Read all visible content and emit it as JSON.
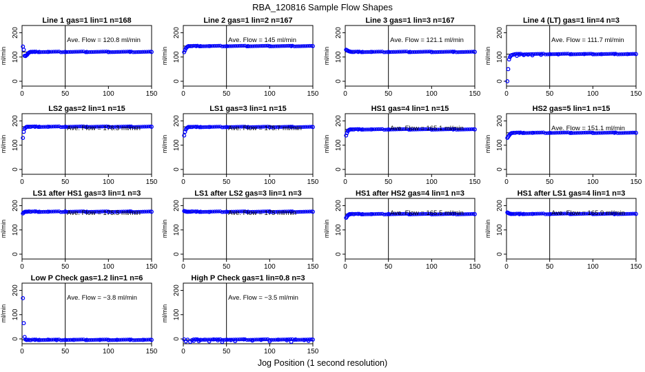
{
  "figure": {
    "title": "RBA_120816  Sample Flow Shapes",
    "xlabel": "Jog Position (1 second resolution)"
  },
  "chart_data": [
    {
      "type": "scatter",
      "title": "Line 1 gas=1 lin=1 n=168",
      "ylabel": "ml/min",
      "annotation": "Ave. Flow =  120.8  ml/min",
      "mean": 120.8,
      "xlim": [
        0,
        150
      ],
      "ylim": [
        -20,
        230
      ],
      "xticks": [
        0,
        50,
        100,
        150
      ],
      "yticks": [
        0,
        100,
        200
      ],
      "vline_x": 50,
      "color": "#0000ff",
      "series": [
        {
          "x": [
            1,
            2,
            3,
            4,
            5,
            6,
            7,
            8,
            9,
            10,
            12,
            15,
            20,
            30,
            50,
            75,
            100,
            125,
            150
          ],
          "y": [
            143,
            130,
            105,
            104,
            107,
            110,
            115,
            118,
            120,
            121,
            121,
            121,
            121,
            121,
            121,
            121,
            121,
            121,
            121
          ]
        }
      ]
    },
    {
      "type": "scatter",
      "title": "Line 2 gas=1 lin=2 n=167",
      "ylabel": "ml/min",
      "annotation": "Ave. Flow = 145  ml/min",
      "mean": 145,
      "xlim": [
        0,
        150
      ],
      "ylim": [
        -20,
        230
      ],
      "xticks": [
        0,
        50,
        100,
        150
      ],
      "yticks": [
        0,
        100,
        200
      ],
      "vline_x": 50,
      "color": "#0000ff",
      "series": [
        {
          "x": [
            1,
            2,
            3,
            4,
            5,
            6,
            8,
            10,
            15,
            20,
            30,
            50,
            75,
            100,
            125,
            150
          ],
          "y": [
            120,
            128,
            136,
            140,
            143,
            145,
            145,
            145,
            145,
            145,
            145,
            145,
            145,
            145,
            145,
            145
          ]
        }
      ]
    },
    {
      "type": "scatter",
      "title": "Line 3 gas=1 lin=3 n=167",
      "ylabel": "ml/min",
      "annotation": "Ave. Flow =  121.1  ml/min",
      "mean": 121.1,
      "xlim": [
        0,
        150
      ],
      "ylim": [
        -20,
        230
      ],
      "xticks": [
        0,
        50,
        100,
        150
      ],
      "yticks": [
        0,
        100,
        200
      ],
      "vline_x": 50,
      "color": "#0000ff",
      "series": [
        {
          "x": [
            1,
            2,
            3,
            4,
            5,
            6,
            8,
            10,
            15,
            20,
            30,
            50,
            75,
            100,
            125,
            150
          ],
          "y": [
            130,
            128,
            126,
            124,
            123,
            122,
            121,
            121,
            121,
            121,
            121,
            121,
            121,
            121,
            121,
            121
          ]
        }
      ]
    },
    {
      "type": "scatter",
      "title": "Line 4 (LT) gas=1 lin=4 n=3",
      "ylabel": "ml/min",
      "annotation": "Ave. Flow =  111.7  ml/min",
      "mean": 111.7,
      "xlim": [
        0,
        150
      ],
      "ylim": [
        -20,
        230
      ],
      "xticks": [
        0,
        50,
        100,
        150
      ],
      "yticks": [
        0,
        100,
        200
      ],
      "vline_x": 50,
      "color": "#0000ff",
      "series": [
        {
          "x": [
            1,
            2,
            3,
            4,
            5,
            6,
            8,
            10,
            12,
            15,
            20,
            25,
            30,
            40,
            50,
            60,
            75,
            90,
            100,
            110,
            125,
            140,
            150
          ],
          "y": [
            0,
            50,
            90,
            100,
            105,
            108,
            110,
            112,
            105,
            110,
            108,
            110,
            107,
            109,
            112,
            111,
            112,
            112,
            112,
            112,
            112,
            112,
            112
          ]
        }
      ]
    },
    {
      "type": "scatter",
      "title": "LS2 gas=2 lin=1 n=15",
      "ylabel": "ml/min",
      "annotation": "Ave. Flow =  176.3  ml/min",
      "mean": 176.3,
      "xlim": [
        0,
        150
      ],
      "ylim": [
        -20,
        230
      ],
      "xticks": [
        0,
        50,
        100,
        150
      ],
      "yticks": [
        0,
        100,
        200
      ],
      "vline_x": 50,
      "color": "#0000ff",
      "series": [
        {
          "x": [
            1,
            2,
            3,
            4,
            5,
            6,
            8,
            10,
            15,
            20,
            30,
            50,
            75,
            100,
            125,
            150
          ],
          "y": [
            130,
            155,
            168,
            172,
            175,
            176,
            176,
            176,
            176,
            176,
            176,
            176,
            176,
            176,
            176,
            176
          ]
        }
      ]
    },
    {
      "type": "scatter",
      "title": "LS1 gas=3 lin=1 n=15",
      "ylabel": "ml/min",
      "annotation": "Ave. Flow =  175.7  ml/min",
      "mean": 175.7,
      "xlim": [
        0,
        150
      ],
      "ylim": [
        -20,
        230
      ],
      "xticks": [
        0,
        50,
        100,
        150
      ],
      "yticks": [
        0,
        100,
        200
      ],
      "vline_x": 50,
      "color": "#0000ff",
      "series": [
        {
          "x": [
            1,
            2,
            3,
            4,
            5,
            6,
            8,
            10,
            15,
            20,
            30,
            50,
            75,
            100,
            125,
            150
          ],
          "y": [
            140,
            155,
            165,
            170,
            173,
            175,
            175,
            175,
            175,
            175,
            175,
            175,
            175,
            175,
            175,
            175
          ]
        }
      ]
    },
    {
      "type": "scatter",
      "title": "HS1 gas=4 lin=1 n=15",
      "ylabel": "ml/min",
      "annotation": "Ave. Flow =  165.1  ml/min",
      "mean": 165.1,
      "xlim": [
        0,
        150
      ],
      "ylim": [
        -20,
        230
      ],
      "xticks": [
        0,
        50,
        100,
        150
      ],
      "yticks": [
        0,
        100,
        200
      ],
      "vline_x": 50,
      "color": "#0000ff",
      "series": [
        {
          "x": [
            1,
            2,
            3,
            4,
            5,
            6,
            8,
            10,
            15,
            20,
            30,
            50,
            75,
            100,
            125,
            150
          ],
          "y": [
            140,
            150,
            158,
            162,
            164,
            165,
            165,
            165,
            165,
            165,
            165,
            165,
            165,
            165,
            165,
            165
          ]
        }
      ]
    },
    {
      "type": "scatter",
      "title": "HS2 gas=5 lin=1 n=15",
      "ylabel": "ml/min",
      "annotation": "Ave. Flow =  151.1  ml/min",
      "mean": 151.1,
      "xlim": [
        0,
        150
      ],
      "ylim": [
        -20,
        230
      ],
      "xticks": [
        0,
        50,
        100,
        150
      ],
      "yticks": [
        0,
        100,
        200
      ],
      "vline_x": 50,
      "color": "#0000ff",
      "series": [
        {
          "x": [
            1,
            2,
            3,
            4,
            5,
            6,
            8,
            10,
            15,
            20,
            30,
            50,
            75,
            100,
            125,
            150
          ],
          "y": [
            130,
            135,
            140,
            145,
            148,
            150,
            151,
            151,
            151,
            151,
            151,
            151,
            151,
            151,
            151,
            151
          ]
        }
      ]
    },
    {
      "type": "scatter",
      "title": "LS1 after HS1 gas=3 lin=1 n=3",
      "ylabel": "ml/min",
      "annotation": "Ave. Flow =  175.5  ml/min",
      "mean": 175.5,
      "xlim": [
        0,
        150
      ],
      "ylim": [
        -20,
        230
      ],
      "xticks": [
        0,
        50,
        100,
        150
      ],
      "yticks": [
        0,
        100,
        200
      ],
      "vline_x": 50,
      "color": "#0000ff",
      "series": [
        {
          "x": [
            1,
            2,
            3,
            4,
            5,
            6,
            8,
            10,
            15,
            20,
            30,
            50,
            75,
            100,
            125,
            150
          ],
          "y": [
            168,
            172,
            174,
            175,
            175,
            175,
            176,
            175,
            176,
            175,
            175,
            176,
            175,
            175,
            176,
            175
          ]
        }
      ]
    },
    {
      "type": "scatter",
      "title": "LS1 after LS2 gas=3 lin=1 n=3",
      "ylabel": "ml/min",
      "annotation": "Ave. Flow =  175  ml/min",
      "mean": 175,
      "xlim": [
        0,
        150
      ],
      "ylim": [
        -20,
        230
      ],
      "xticks": [
        0,
        50,
        100,
        150
      ],
      "yticks": [
        0,
        100,
        200
      ],
      "vline_x": 50,
      "color": "#0000ff",
      "series": [
        {
          "x": [
            1,
            2,
            3,
            4,
            5,
            6,
            8,
            10,
            15,
            20,
            30,
            50,
            75,
            100,
            125,
            150
          ],
          "y": [
            178,
            177,
            176,
            175,
            175,
            175,
            175,
            176,
            175,
            175,
            174,
            175,
            175,
            176,
            175,
            175
          ]
        }
      ]
    },
    {
      "type": "scatter",
      "title": "HS1 after HS2 gas=4 lin=1 n=3",
      "ylabel": "ml/min",
      "annotation": "Ave. Flow =  165.5  ml/min",
      "mean": 165.5,
      "xlim": [
        0,
        150
      ],
      "ylim": [
        -20,
        230
      ],
      "xticks": [
        0,
        50,
        100,
        150
      ],
      "yticks": [
        0,
        100,
        200
      ],
      "vline_x": 50,
      "color": "#0000ff",
      "series": [
        {
          "x": [
            1,
            2,
            3,
            4,
            5,
            6,
            8,
            10,
            15,
            20,
            30,
            50,
            75,
            100,
            125,
            150
          ],
          "y": [
            150,
            155,
            160,
            163,
            165,
            165,
            166,
            165,
            166,
            165,
            165,
            166,
            165,
            165,
            166,
            165
          ]
        }
      ]
    },
    {
      "type": "scatter",
      "title": "HS1 after LS1 gas=4 lin=1 n=3",
      "ylabel": "ml/min",
      "annotation": "Ave. Flow =  165.9  ml/min",
      "mean": 165.9,
      "xlim": [
        0,
        150
      ],
      "ylim": [
        -20,
        230
      ],
      "xticks": [
        0,
        50,
        100,
        150
      ],
      "yticks": [
        0,
        100,
        200
      ],
      "vline_x": 50,
      "color": "#0000ff",
      "series": [
        {
          "x": [
            1,
            2,
            3,
            4,
            5,
            6,
            8,
            10,
            15,
            20,
            30,
            50,
            75,
            100,
            125,
            150
          ],
          "y": [
            172,
            170,
            168,
            167,
            166,
            166,
            166,
            166,
            165,
            166,
            166,
            165,
            166,
            166,
            165,
            166
          ]
        }
      ]
    },
    {
      "type": "scatter",
      "title": "Low P Check gas=1.2 lin=1 n=6",
      "ylabel": "ml/min",
      "annotation": "Ave. Flow =  −3.8  ml/min",
      "mean": -3.8,
      "xlim": [
        0,
        150
      ],
      "ylim": [
        -20,
        230
      ],
      "xticks": [
        0,
        50,
        100,
        150
      ],
      "yticks": [
        0,
        100,
        200
      ],
      "vline_x": 50,
      "color": "#0000ff",
      "series": [
        {
          "x": [
            1,
            2,
            3,
            4,
            5,
            6,
            8,
            10,
            15,
            20,
            30,
            40,
            50,
            60,
            75,
            90,
            100,
            110,
            125,
            140,
            150
          ],
          "y": [
            168,
            65,
            8,
            -2,
            -4,
            -4,
            -4,
            -5,
            -4,
            -4,
            -3,
            -5,
            -4,
            -4,
            -4,
            -4,
            -4,
            -4,
            -4,
            -4,
            -4
          ]
        }
      ]
    },
    {
      "type": "scatter",
      "title": "High P Check gas=1 lin=0.8 n=3",
      "ylabel": "ml/min",
      "annotation": "Ave. Flow =  −3.5  ml/min",
      "mean": -3.5,
      "xlim": [
        0,
        150
      ],
      "ylim": [
        -20,
        230
      ],
      "xticks": [
        0,
        50,
        100,
        150
      ],
      "yticks": [
        0,
        100,
        200
      ],
      "vline_x": 50,
      "color": "#0000ff",
      "series": [
        {
          "x": [
            1,
            3,
            5,
            8,
            10,
            12,
            15,
            18,
            20,
            25,
            30,
            35,
            40,
            45,
            50,
            55,
            60,
            70,
            80,
            90,
            100,
            110,
            120,
            125,
            130,
            140,
            145,
            150
          ],
          "y": [
            -2,
            -10,
            -3,
            -12,
            -5,
            -8,
            -2,
            -9,
            -4,
            -3,
            -10,
            -2,
            -6,
            -12,
            -3,
            -5,
            -9,
            -2,
            -7,
            -4,
            -10,
            -3,
            -6,
            -12,
            -2,
            -5,
            -8,
            -3
          ]
        }
      ]
    }
  ]
}
